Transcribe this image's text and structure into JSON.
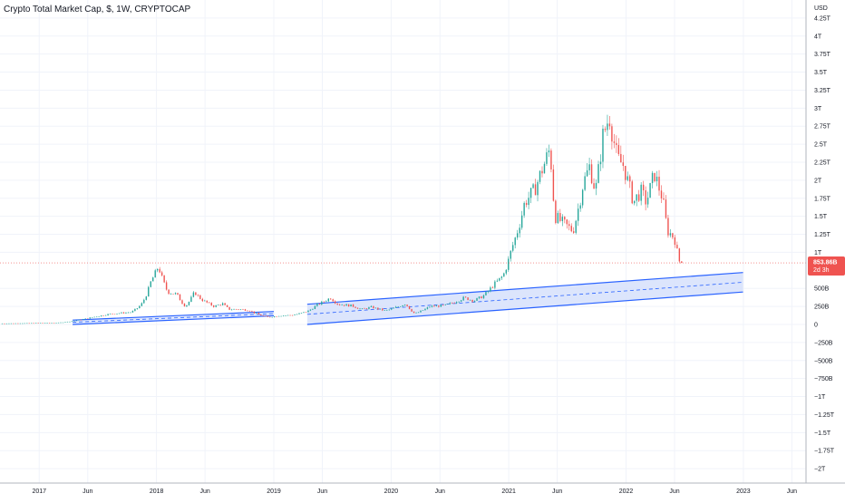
{
  "chart_data": {
    "type": "candlestick",
    "title": "Crypto Total Market Cap, $, 1W, CRYPTOCAP",
    "currency_label": "USD",
    "last_price_label": "853.86B",
    "countdown_label": "2d 3h",
    "last_price": 0.85386,
    "y_unit": "trillion USD",
    "ylim": [
      -2.2,
      4.5
    ],
    "x_start": "2016-09-01",
    "x_end": "2023-07-15",
    "grid": true,
    "legend": "none",
    "colors": {
      "up": "#26a69a",
      "down": "#ef5350",
      "channel": "#2962ff",
      "channel_fill": "#d6e1fb",
      "price_line": "#ef5350"
    },
    "y_ticks": [
      {
        "value": 4.25,
        "label": "4.25T"
      },
      {
        "value": 4.0,
        "label": "4T"
      },
      {
        "value": 3.75,
        "label": "3.75T"
      },
      {
        "value": 3.5,
        "label": "3.5T"
      },
      {
        "value": 3.25,
        "label": "3.25T"
      },
      {
        "value": 3.0,
        "label": "3T"
      },
      {
        "value": 2.75,
        "label": "2.75T"
      },
      {
        "value": 2.5,
        "label": "2.5T"
      },
      {
        "value": 2.25,
        "label": "2.25T"
      },
      {
        "value": 2.0,
        "label": "2T"
      },
      {
        "value": 1.75,
        "label": "1.75T"
      },
      {
        "value": 1.5,
        "label": "1.5T"
      },
      {
        "value": 1.25,
        "label": "1.25T"
      },
      {
        "value": 1.0,
        "label": "1T"
      },
      {
        "value": 0.5,
        "label": "500B"
      },
      {
        "value": 0.25,
        "label": "250B"
      },
      {
        "value": 0.0,
        "label": "0"
      },
      {
        "value": -0.25,
        "label": "−250B"
      },
      {
        "value": -0.5,
        "label": "−500B"
      },
      {
        "value": -0.75,
        "label": "−750B"
      },
      {
        "value": -1.0,
        "label": "−1T"
      },
      {
        "value": -1.25,
        "label": "−1.25T"
      },
      {
        "value": -1.5,
        "label": "−1.5T"
      },
      {
        "value": -1.75,
        "label": "−1.75T"
      },
      {
        "value": -2.0,
        "label": "−2T"
      }
    ],
    "x_ticks": [
      {
        "date": "2017-01-01",
        "label": "2017"
      },
      {
        "date": "2017-06-01",
        "label": "Jun"
      },
      {
        "date": "2018-01-01",
        "label": "2018"
      },
      {
        "date": "2018-06-01",
        "label": "Jun"
      },
      {
        "date": "2019-01-01",
        "label": "2019"
      },
      {
        "date": "2019-06-01",
        "label": "Jun"
      },
      {
        "date": "2020-01-01",
        "label": "2020"
      },
      {
        "date": "2020-06-01",
        "label": "Jun"
      },
      {
        "date": "2021-01-01",
        "label": "2021"
      },
      {
        "date": "2021-06-01",
        "label": "Jun"
      },
      {
        "date": "2022-01-01",
        "label": "2022"
      },
      {
        "date": "2022-06-01",
        "label": "Jun"
      },
      {
        "date": "2023-01-01",
        "label": "2023"
      },
      {
        "date": "2023-06-01",
        "label": "Jun"
      }
    ],
    "price_path": [
      [
        "2016-09-01",
        0.013
      ],
      [
        "2016-12-01",
        0.018
      ],
      [
        "2017-03-01",
        0.024
      ],
      [
        "2017-05-01",
        0.06
      ],
      [
        "2017-06-15",
        0.1
      ],
      [
        "2017-08-01",
        0.14
      ],
      [
        "2017-09-15",
        0.16
      ],
      [
        "2017-10-15",
        0.17
      ],
      [
        "2017-11-15",
        0.28
      ],
      [
        "2017-12-15",
        0.6
      ],
      [
        "2018-01-07",
        0.81
      ],
      [
        "2018-02-05",
        0.45
      ],
      [
        "2018-03-05",
        0.42
      ],
      [
        "2018-04-01",
        0.25
      ],
      [
        "2018-04-29",
        0.45
      ],
      [
        "2018-05-20",
        0.35
      ],
      [
        "2018-06-30",
        0.25
      ],
      [
        "2018-07-25",
        0.29
      ],
      [
        "2018-08-15",
        0.21
      ],
      [
        "2018-09-15",
        0.21
      ],
      [
        "2018-10-15",
        0.2
      ],
      [
        "2018-11-20",
        0.13
      ],
      [
        "2018-12-15",
        0.1
      ],
      [
        "2019-01-15",
        0.12
      ],
      [
        "2019-03-01",
        0.13
      ],
      [
        "2019-04-15",
        0.18
      ],
      [
        "2019-05-15",
        0.27
      ],
      [
        "2019-06-26",
        0.37
      ],
      [
        "2019-07-20",
        0.28
      ],
      [
        "2019-09-01",
        0.26
      ],
      [
        "2019-10-01",
        0.21
      ],
      [
        "2019-11-01",
        0.24
      ],
      [
        "2019-12-15",
        0.19
      ],
      [
        "2020-02-15",
        0.29
      ],
      [
        "2020-03-15",
        0.15
      ],
      [
        "2020-05-01",
        0.25
      ],
      [
        "2020-06-15",
        0.26
      ],
      [
        "2020-08-15",
        0.37
      ],
      [
        "2020-09-15",
        0.33
      ],
      [
        "2020-10-15",
        0.4
      ],
      [
        "2020-11-15",
        0.55
      ],
      [
        "2020-12-15",
        0.68
      ],
      [
        "2021-01-10",
        1.05
      ],
      [
        "2021-02-20",
        1.7
      ],
      [
        "2021-03-20",
        1.85
      ],
      [
        "2021-04-15",
        2.15
      ],
      [
        "2021-05-10",
        2.45
      ],
      [
        "2021-05-25",
        1.5
      ],
      [
        "2021-06-20",
        1.4
      ],
      [
        "2021-07-20",
        1.3
      ],
      [
        "2021-08-20",
        1.95
      ],
      [
        "2021-09-10",
        2.2
      ],
      [
        "2021-09-28",
        1.85
      ],
      [
        "2021-10-20",
        2.6
      ],
      [
        "2021-11-10",
        2.9
      ],
      [
        "2021-12-05",
        2.3
      ],
      [
        "2021-12-25",
        2.2
      ],
      [
        "2022-01-25",
        1.7
      ],
      [
        "2022-02-15",
        1.85
      ],
      [
        "2022-03-05",
        1.7
      ],
      [
        "2022-03-30",
        2.1
      ],
      [
        "2022-04-25",
        1.75
      ],
      [
        "2022-05-10",
        1.3
      ],
      [
        "2022-06-01",
        1.2
      ],
      [
        "2022-06-15",
        0.88
      ],
      [
        "2022-06-28",
        0.854
      ]
    ],
    "channels": [
      {
        "name": "",
        "upper": [
          [
            "2017-04-15",
            0.06
          ],
          [
            "2019-01-01",
            0.18
          ]
        ],
        "lower": [
          [
            "2017-04-15",
            0.0
          ],
          [
            "2019-01-01",
            0.12
          ]
        ]
      },
      {
        "name": "",
        "upper": [
          [
            "2019-04-15",
            0.28
          ],
          [
            "2022-12-31",
            0.72
          ]
        ],
        "lower": [
          [
            "2019-04-15",
            0.0
          ],
          [
            "2022-12-31",
            0.45
          ]
        ]
      }
    ]
  }
}
